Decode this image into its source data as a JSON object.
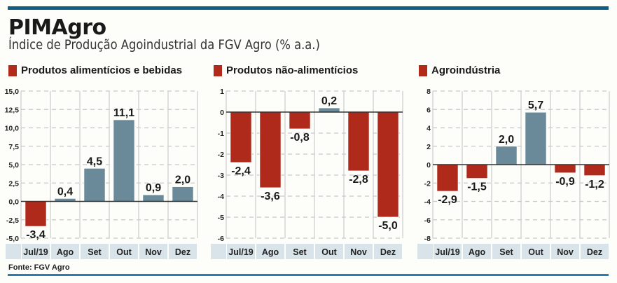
{
  "header": {
    "title": "PIMAgro",
    "subtitle": "Índice de Produção Agoindustrial da FGV Agro (% a.a.)"
  },
  "footer": {
    "source": "Fonte: FGV Agro"
  },
  "colors": {
    "positive": "#6a8a99",
    "negative": "#b02a1c",
    "accent_bar": "#0d5f86",
    "category_band": "#d9e3ea",
    "legend_swatch": "#b22a1a"
  },
  "chart_data": [
    {
      "type": "bar",
      "title": "Produtos alimentícios e bebidas",
      "categories": [
        "Jul/19",
        "Ago",
        "Set",
        "Out",
        "Nov",
        "Dez"
      ],
      "values": [
        -3.4,
        0.4,
        4.5,
        11.1,
        0.9,
        2.0
      ],
      "value_labels": [
        "-3,4",
        "0,4",
        "4,5",
        "11,1",
        "0,9",
        "2,0"
      ],
      "ylim": [
        -5.0,
        15.0
      ],
      "yticks": [
        15.0,
        12.5,
        10.0,
        7.5,
        5.0,
        2.5,
        0.0,
        -2.5,
        -5.0
      ],
      "ytick_labels": [
        "15,0",
        "12,5",
        "10,0",
        "7,5",
        "5,0",
        "2,5",
        "0,0",
        "-2,5",
        "-5,0"
      ],
      "grid": true,
      "xlabel": "",
      "ylabel": ""
    },
    {
      "type": "bar",
      "title": "Produtos não-alimentícios",
      "categories": [
        "Jul/19",
        "Ago",
        "Set",
        "Out",
        "Nov",
        "Dez"
      ],
      "values": [
        -2.4,
        -3.6,
        -0.8,
        0.2,
        -2.8,
        -5.0
      ],
      "value_labels": [
        "-2,4",
        "-3,6",
        "-0,8",
        "0,2",
        "-2,8",
        "-5,0"
      ],
      "ylim": [
        -6,
        1
      ],
      "yticks": [
        1,
        0,
        -1,
        -2,
        -3,
        -4,
        -5,
        -6
      ],
      "ytick_labels": [
        "1",
        "0",
        "-1",
        "-2",
        "-3",
        "-4",
        "-5",
        "-6"
      ],
      "grid": true,
      "xlabel": "",
      "ylabel": ""
    },
    {
      "type": "bar",
      "title": "Agroindústria",
      "categories": [
        "Jul/19",
        "Ago",
        "Set",
        "Out",
        "Nov",
        "Dez"
      ],
      "values": [
        -2.9,
        -1.5,
        2.0,
        5.7,
        -0.9,
        -1.2
      ],
      "value_labels": [
        "-2,9",
        "-1,5",
        "2,0",
        "5,7",
        "-0,9",
        "-1,2"
      ],
      "ylim": [
        -8,
        8
      ],
      "yticks": [
        8,
        6,
        4,
        2,
        0,
        -2,
        -4,
        -6,
        -8
      ],
      "ytick_labels": [
        "8",
        "6",
        "4",
        "2",
        "0",
        "-2",
        "-4",
        "-6",
        "-8"
      ],
      "grid": true,
      "xlabel": "",
      "ylabel": ""
    }
  ]
}
